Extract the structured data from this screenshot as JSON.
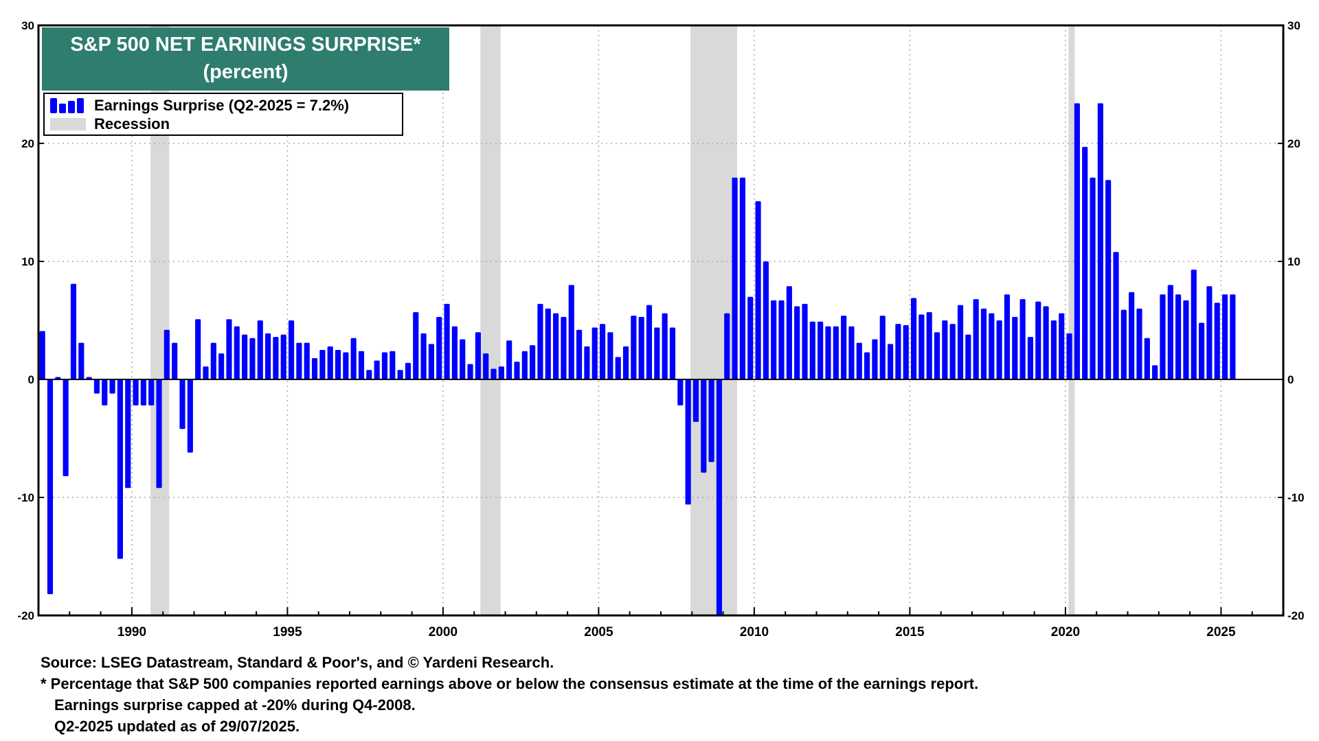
{
  "chart_data": {
    "type": "bar",
    "title": "S&P 500 NET EARNINGS SURPRISE*",
    "subtitle": "(percent)",
    "legend": {
      "placement": "top-left",
      "entries": [
        {
          "name": "Earnings Surprise (Q2-2025 = 7.2%)",
          "color": "#0000ff"
        },
        {
          "name": "Recession",
          "color": "#d9d9d9"
        }
      ]
    },
    "grid": true,
    "ylim": [
      -20,
      30
    ],
    "xlim": [
      1987.0,
      2027.0
    ],
    "y_ticks": [
      -20,
      -10,
      0,
      10,
      20,
      30
    ],
    "x_ticks": [
      1990,
      1995,
      2000,
      2005,
      2010,
      2015,
      2020,
      2025
    ],
    "recessions": [
      [
        1990.6,
        1991.2
      ],
      [
        2001.2,
        2001.85
      ],
      [
        2007.95,
        2009.45
      ],
      [
        2020.1,
        2020.3
      ]
    ],
    "series": [
      {
        "name": "Earnings Surprise (Q2-2025 = 7.2%)",
        "start_quarter": "Q1-1987",
        "values": [
          4.1,
          -18.2,
          0.2,
          -8.2,
          8.1,
          3.1,
          0.2,
          -1.2,
          -2.2,
          -1.2,
          -15.2,
          -9.2,
          -2.2,
          -2.2,
          -2.2,
          -9.2,
          4.2,
          3.1,
          -4.2,
          -6.2,
          5.1,
          1.1,
          3.1,
          2.2,
          5.1,
          4.5,
          3.8,
          3.5,
          5.0,
          3.9,
          3.6,
          3.8,
          5.0,
          3.1,
          3.1,
          1.8,
          2.5,
          2.8,
          2.5,
          2.3,
          3.5,
          2.4,
          0.8,
          1.6,
          2.3,
          2.4,
          0.8,
          1.4,
          5.7,
          3.9,
          3.0,
          5.3,
          6.4,
          4.5,
          3.4,
          1.3,
          4.0,
          2.2,
          0.9,
          1.1,
          3.3,
          1.5,
          2.4,
          2.9,
          6.4,
          6.0,
          5.6,
          5.3,
          8.0,
          4.2,
          2.8,
          4.4,
          4.7,
          4.0,
          1.9,
          2.8,
          5.4,
          5.3,
          6.3,
          4.4,
          5.6,
          4.4,
          -2.2,
          -10.6,
          -3.6,
          -7.9,
          -7.0,
          -20.0,
          5.6,
          17.1,
          17.1,
          7.0,
          15.1,
          10.0,
          6.7,
          6.7,
          7.9,
          6.2,
          6.4,
          4.9,
          4.9,
          4.5,
          4.5,
          5.4,
          4.5,
          3.1,
          2.3,
          3.4,
          5.4,
          3.0,
          4.7,
          4.6,
          6.9,
          5.5,
          5.7,
          4.0,
          5.0,
          4.7,
          6.3,
          3.8,
          6.8,
          6.0,
          5.6,
          5.0,
          7.2,
          5.3,
          6.8,
          3.6,
          6.6,
          6.2,
          5.0,
          5.6,
          3.9,
          23.4,
          19.7,
          17.1,
          23.4,
          16.9,
          10.8,
          5.9,
          7.4,
          6.0,
          3.5,
          1.2,
          7.2,
          8.0,
          7.2,
          6.7,
          9.3,
          4.8,
          7.9,
          6.5,
          7.2,
          7.2
        ]
      }
    ]
  },
  "footnotes": {
    "source": "Source: LSEG Datastream, Standard & Poor's, and © Yardeni Research.",
    "note1": "* Percentage that S&P 500 companies reported earnings above or below the consensus estimate at the time of the earnings report.",
    "note2": "Earnings surprise capped at -20% during Q4-2008.",
    "note3": "Q2-2025 updated as of 29/07/2025."
  }
}
